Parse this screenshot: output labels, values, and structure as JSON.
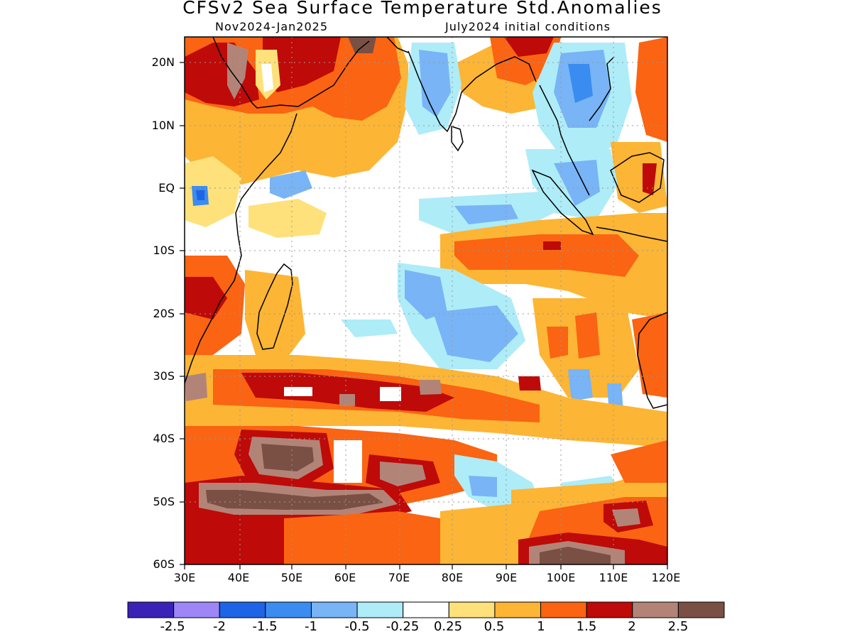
{
  "title": "CFSv2 Sea Surface Temperature Std.Anomalies",
  "subtitle_left": "Nov2024-Jan2025",
  "subtitle_right": "July2024 initial conditions",
  "map": {
    "lon_range": [
      30,
      120
    ],
    "lat_range": [
      -60,
      24
    ],
    "grid": true,
    "lat_ticks": [
      "20N",
      "10N",
      "EQ",
      "10S",
      "20S",
      "30S",
      "40S",
      "50S",
      "60S"
    ],
    "lon_ticks": [
      "30E",
      "40E",
      "50E",
      "60E",
      "70E",
      "80E",
      "90E",
      "100E",
      "110E",
      "120E"
    ]
  },
  "colorbar": {
    "colors": [
      "#3a22b6",
      "#9e86f6",
      "#1e64e6",
      "#3a8cf0",
      "#78b4f6",
      "#aeecf8",
      "#ffffff",
      "#fee17a",
      "#fcb535",
      "#fa6412",
      "#be0a08",
      "#b28478",
      "#7a5044"
    ],
    "labels": [
      "-2.5",
      "-2",
      "-1.5",
      "-1",
      "-0.5",
      "-0.25",
      "0.25",
      "0.5",
      "1",
      "1.5",
      "2",
      "2.5"
    ]
  },
  "palette": {
    "white": "#ffffff",
    "lt_yellow": "#fee17a",
    "orange": "#fcb535",
    "dk_orange": "#fa6412",
    "red": "#be0a08",
    "brown_lt": "#b28478",
    "brown_dk": "#7a5044",
    "cyan": "#aeecf8",
    "lt_blue": "#78b4f6",
    "blue": "#3a8cf0",
    "dk_blue": "#1e64e6",
    "land_line": "#000000",
    "grid_line": "#999999"
  }
}
